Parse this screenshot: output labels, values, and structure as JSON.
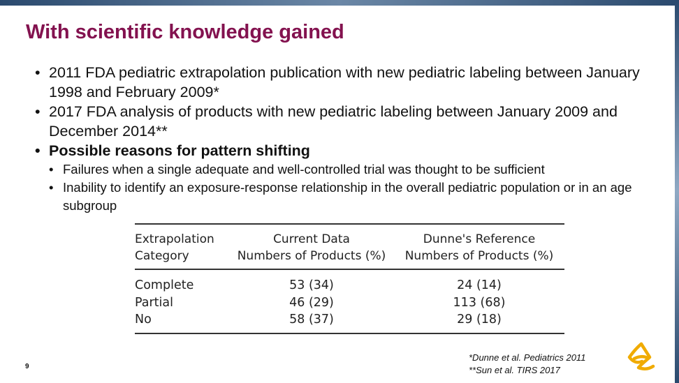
{
  "slide": {
    "title": "With scientific knowledge gained",
    "bullets": [
      "2011 FDA pediatric extrapolation publication with new pediatric labeling between January 1998 and February 2009*",
      "2017 FDA analysis of products with new pediatric labeling between January 2009 and December 2014**",
      "Possible reasons for pattern shifting"
    ],
    "sub_bullets": [
      "Failures when a single adequate and well-controlled trial was thought to be sufficient",
      "Inability to identify an exposure-response relationship in the overall pediatric population or in an age subgroup"
    ],
    "bullet_glyph": "•",
    "page_number": "9",
    "references": [
      "*Dunne et al. Pediatrics 2011",
      "**Sun et al. TIRS 2017"
    ],
    "logo_icon": "astrazeneca-logo",
    "colors": {
      "title": "#83124f",
      "logo": "#f0ab00"
    }
  },
  "table": {
    "headers": [
      [
        "Extrapolation",
        "Category"
      ],
      [
        "Current Data",
        "Numbers of Products (%)"
      ],
      [
        "Dunne's Reference",
        "Numbers of Products (%)"
      ]
    ],
    "rows": [
      [
        "Complete",
        "53 (34)",
        "24 (14)"
      ],
      [
        "Partial",
        "46 (29)",
        "113 (68)"
      ],
      [
        "No",
        "58 (37)",
        "29 (18)"
      ]
    ]
  }
}
